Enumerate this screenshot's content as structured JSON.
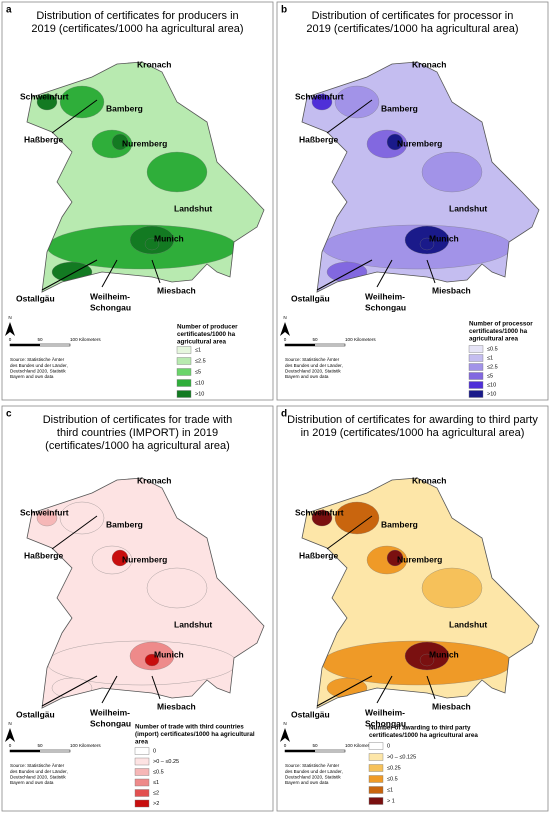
{
  "panels": [
    {
      "letter": "a",
      "title": [
        "Distribution of certificates for producers in",
        "2019 (certificates/1000 ha agricultural area)"
      ],
      "cities": [
        [
          "Kronach"
        ],
        [
          "Schweinfurt"
        ],
        [
          "Bamberg"
        ],
        [
          "Haßberge"
        ],
        [
          "Nuremberg"
        ],
        [
          "Landshut"
        ],
        [
          "Munich"
        ],
        [
          "Ostallgäu"
        ],
        [
          "Weilheim-",
          "Schongau"
        ],
        [
          "Miesbach"
        ]
      ],
      "legend": {
        "title": [
          "Number of producer",
          "certificates/1000 ha",
          "agricultural area"
        ],
        "items": [
          {
            "label": "≤1",
            "color": "#e6f7de"
          },
          {
            "label": "≤2.5",
            "color": "#b8eab0"
          },
          {
            "label": "≤5",
            "color": "#6ad46a"
          },
          {
            "label": "≤10",
            "color": "#2fae3a"
          },
          {
            "label": ">10",
            "color": "#137a22"
          }
        ]
      },
      "north": "N",
      "scale": [
        "0",
        "50",
        "100 Kilometers"
      ],
      "source": [
        "Source: Statistische Ämter",
        "des Bundes und der Länder,",
        "Deutschland 2020, Statistik",
        "Bayern and own data"
      ]
    },
    {
      "letter": "b",
      "title": [
        "Distribution of certificates for processor in",
        "2019 (certificates/1000 ha agricultural area)"
      ],
      "cities": [
        [
          "Kronach"
        ],
        [
          "Schweinfurt"
        ],
        [
          "Bamberg"
        ],
        [
          "Haßberge"
        ],
        [
          "Nuremberg"
        ],
        [
          "Landshut"
        ],
        [
          "Munich"
        ],
        [
          "Ostallgäu"
        ],
        [
          "Weilheim-",
          "Schongau"
        ],
        [
          "Miesbach"
        ]
      ],
      "legend": {
        "title": [
          "Number of processor",
          "certificates/1000 ha",
          "agricultural area"
        ],
        "items": [
          {
            "label": "≤0.5",
            "color": "#e6e4f7"
          },
          {
            "label": "≤1",
            "color": "#c4bdf0"
          },
          {
            "label": "≤2.5",
            "color": "#a293e8"
          },
          {
            "label": "≤5",
            "color": "#8268e0"
          },
          {
            "label": "≤10",
            "color": "#4f2fd8"
          },
          {
            "label": ">10",
            "color": "#1a1a8a"
          }
        ]
      },
      "north": "N",
      "scale": [
        "0",
        "50",
        "100 Kilometers"
      ],
      "source": [
        "Source: Statistische Ämter",
        "des Bundes und der Länder,",
        "Deutschland 2020, Statistik",
        "Bayern and own data"
      ]
    },
    {
      "letter": "c",
      "title": [
        "Distribution of certificates for trade with",
        "third countries (IMPORT) in 2019",
        "(certificates/1000 ha agricultural area)"
      ],
      "cities": [
        [
          "Kronach"
        ],
        [
          "Schweinfurt"
        ],
        [
          "Bamberg"
        ],
        [
          "Haßberge"
        ],
        [
          "Nuremberg"
        ],
        [
          "Landshut"
        ],
        [
          "Munich"
        ],
        [
          "Ostallgäu"
        ],
        [
          "Weilheim-",
          "Schongau"
        ],
        [
          "Miesbach"
        ]
      ],
      "legend": {
        "title": [
          "Number of trade with third countries",
          "(import) certificates/1000 ha agricultural",
          "area"
        ],
        "items": [
          {
            "label": "0",
            "color": "#ffffff"
          },
          {
            "label": ">0 – ≤0.25",
            "color": "#fde3e3"
          },
          {
            "label": "≤0.5",
            "color": "#f6b7b7"
          },
          {
            "label": "≤1",
            "color": "#ee8a8a"
          },
          {
            "label": "≤2",
            "color": "#e25050"
          },
          {
            "label": ">2",
            "color": "#c80e0e"
          }
        ]
      },
      "north": "N",
      "scale": [
        "0",
        "50",
        "100 Kilometers"
      ],
      "source": [
        "Source: Statistische Ämter",
        "des Bundes und der Länder,",
        "Deutschland 2020, Statistik",
        "Bayern and own data"
      ]
    },
    {
      "letter": "d",
      "title": [
        "Distribution of certificates for awarding to third party",
        "in 2019 (certificates/1000 ha agricultural area)"
      ],
      "cities": [
        [
          "Kronach"
        ],
        [
          "Schweinfurt"
        ],
        [
          "Bamberg"
        ],
        [
          "Haßberge"
        ],
        [
          "Nuremberg"
        ],
        [
          "Landshut"
        ],
        [
          "Munich"
        ],
        [
          "Ostallgäu"
        ],
        [
          "Weilheim-",
          "Schongau"
        ],
        [
          "Miesbach"
        ]
      ],
      "legend": {
        "title": [
          "Number of awarding to third party",
          "certificates/1000 ha agricultural area"
        ],
        "items": [
          {
            "label": "0",
            "color": "#ffffff"
          },
          {
            "label": ">0 – ≤0.125",
            "color": "#fde6a8"
          },
          {
            "label": "≤0.25",
            "color": "#f6c15a"
          },
          {
            "label": "≤0.5",
            "color": "#ef9a27"
          },
          {
            "label": "≤1",
            "color": "#c9650e"
          },
          {
            "label": "> 1",
            "color": "#7a1010"
          }
        ]
      },
      "north": "N",
      "scale": [
        "0",
        "50",
        "100 Kilometers"
      ],
      "source": [
        "Source: Statistische Ämter",
        "des Bundes und der Länder,",
        "Deutschland 2020, Statistik",
        "Bayern and own data"
      ]
    }
  ]
}
